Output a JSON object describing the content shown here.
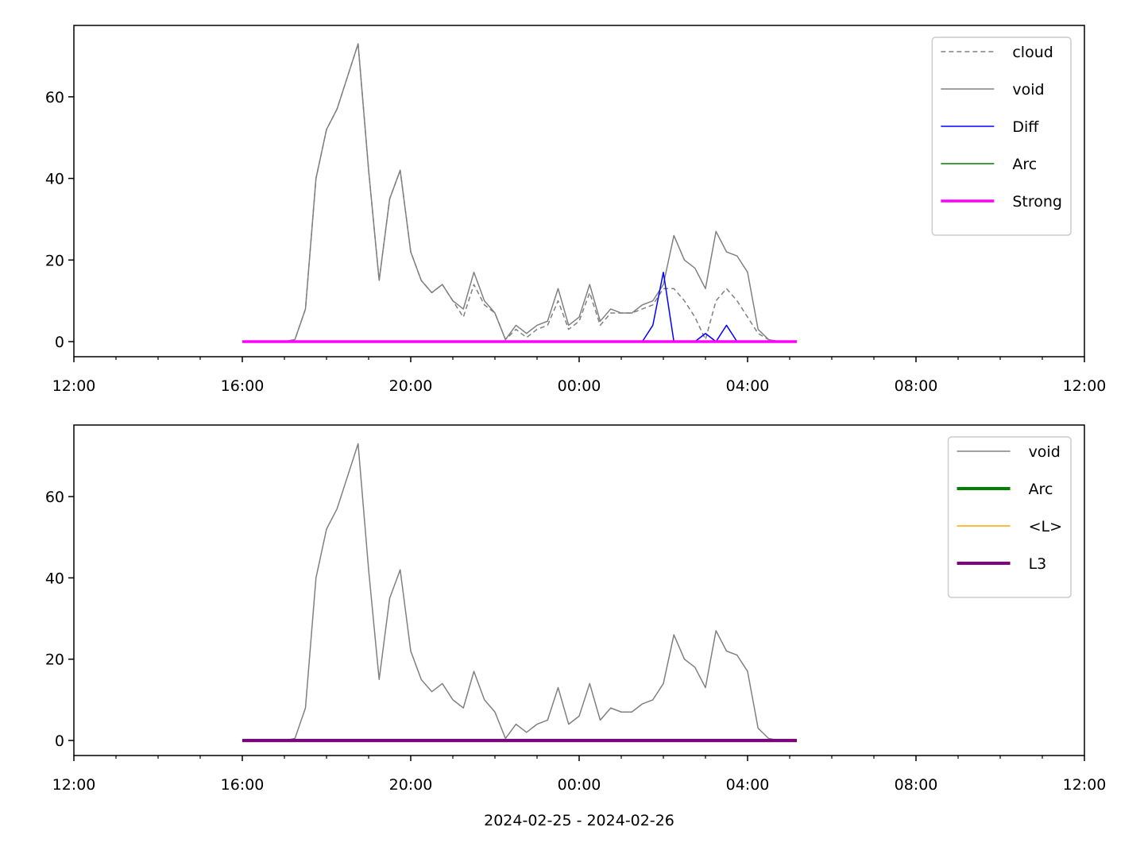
{
  "chart_data": [
    {
      "type": "line",
      "x": [
        16,
        16.25,
        16.5,
        16.75,
        17,
        17.25,
        17.5,
        17.75,
        18,
        18.25,
        18.5,
        18.75,
        19,
        19.25,
        19.5,
        19.75,
        20,
        20.25,
        20.5,
        20.75,
        21,
        21.25,
        21.5,
        21.75,
        22,
        22.25,
        22.5,
        22.75,
        23,
        23.25,
        23.5,
        23.75,
        24,
        24.25,
        24.5,
        24.75,
        25,
        25.25,
        25.5,
        25.75,
        26,
        26.25,
        26.5,
        26.75,
        27,
        27.25,
        27.5,
        27.75,
        28,
        28.25,
        28.5,
        28.75,
        29,
        29.17
      ],
      "series": [
        {
          "name": "cloud",
          "color": "#808080",
          "linestyle": "dashed",
          "linewidth": 1.5,
          "values": [
            0,
            0,
            0,
            0,
            0,
            0.5,
            8,
            40,
            52,
            57,
            65,
            73,
            42,
            15,
            35,
            42,
            22,
            15,
            12,
            14,
            10,
            6,
            14,
            9,
            7,
            0.5,
            3,
            1,
            3,
            4,
            10,
            3,
            5,
            12,
            4,
            7,
            7,
            7,
            8,
            9,
            13,
            13,
            10,
            6,
            0.5,
            10,
            13,
            10,
            6,
            2,
            0.5,
            0,
            0,
            0
          ]
        },
        {
          "name": "void",
          "color": "#808080",
          "linestyle": "solid",
          "linewidth": 1.5,
          "values": [
            0,
            0,
            0,
            0,
            0,
            0.5,
            8,
            40,
            52,
            57,
            65,
            73,
            42,
            15,
            35,
            42,
            22,
            15,
            12,
            14,
            10,
            8,
            17,
            10,
            7,
            0.5,
            4,
            2,
            4,
            5,
            13,
            4,
            6,
            14,
            5,
            8,
            7,
            7,
            9,
            10,
            14,
            26,
            20,
            18,
            13,
            27,
            22,
            21,
            17,
            3,
            0.5,
            0,
            0,
            0
          ]
        },
        {
          "name": "Diff",
          "color": "#0000ff",
          "linestyle": "solid",
          "linewidth": 1.5,
          "values": [
            0,
            0,
            0,
            0,
            0,
            0,
            0,
            0,
            0,
            0,
            0,
            0,
            0,
            0,
            0,
            0,
            0,
            0,
            0,
            0,
            0,
            0,
            0,
            0,
            0,
            0,
            0,
            0,
            0,
            0,
            0,
            0,
            0,
            0,
            0,
            0,
            0,
            0,
            0,
            4,
            17,
            0,
            0,
            0,
            2,
            0,
            4,
            0,
            0,
            0,
            0,
            0,
            0,
            0
          ]
        },
        {
          "name": "Arc",
          "color": "#008000",
          "linestyle": "solid",
          "linewidth": 1.5,
          "values": [
            0,
            0,
            0,
            0,
            0,
            0,
            0,
            0,
            0,
            0,
            0,
            0,
            0,
            0,
            0,
            0,
            0,
            0,
            0,
            0,
            0,
            0,
            0,
            0,
            0,
            0,
            0,
            0,
            0,
            0,
            0,
            0,
            0,
            0,
            0,
            0,
            0,
            0,
            0,
            0,
            0,
            0,
            0,
            0,
            0,
            0,
            0,
            0,
            0,
            0,
            0,
            0,
            0,
            0
          ]
        },
        {
          "name": "Strong",
          "color": "#ff00ff",
          "linestyle": "solid",
          "linewidth": 3.5,
          "values": [
            0,
            0,
            0,
            0,
            0,
            0,
            0,
            0,
            0,
            0,
            0,
            0,
            0,
            0,
            0,
            0,
            0,
            0,
            0,
            0,
            0,
            0,
            0,
            0,
            0,
            0,
            0,
            0,
            0,
            0,
            0,
            0,
            0,
            0,
            0,
            0,
            0,
            0,
            0,
            0,
            0,
            0,
            0,
            0,
            0,
            0,
            0,
            0,
            0,
            0,
            0,
            0,
            0,
            0
          ]
        }
      ],
      "xlim": [
        12,
        36
      ],
      "ylim": [
        -3.7,
        77.5
      ],
      "xticks": [
        {
          "value": 12,
          "label": "12:00"
        },
        {
          "value": 16,
          "label": "16:00"
        },
        {
          "value": 20,
          "label": "20:00"
        },
        {
          "value": 24,
          "label": "00:00"
        },
        {
          "value": 28,
          "label": "04:00"
        },
        {
          "value": 32,
          "label": "08:00"
        },
        {
          "value": 36,
          "label": "12:00"
        }
      ],
      "xminorticks": [
        13,
        14,
        15,
        17,
        18,
        19,
        21,
        22,
        23,
        25,
        26,
        27,
        29,
        30,
        31,
        33,
        34,
        35
      ],
      "yticks": [
        0,
        20,
        40,
        60
      ],
      "legend": "upper right"
    },
    {
      "type": "line",
      "x": [
        16,
        16.25,
        16.5,
        16.75,
        17,
        17.25,
        17.5,
        17.75,
        18,
        18.25,
        18.5,
        18.75,
        19,
        19.25,
        19.5,
        19.75,
        20,
        20.25,
        20.5,
        20.75,
        21,
        21.25,
        21.5,
        21.75,
        22,
        22.25,
        22.5,
        22.75,
        23,
        23.25,
        23.5,
        23.75,
        24,
        24.25,
        24.5,
        24.75,
        25,
        25.25,
        25.5,
        25.75,
        26,
        26.25,
        26.5,
        26.75,
        27,
        27.25,
        27.5,
        27.75,
        28,
        28.25,
        28.5,
        28.75,
        29,
        29.17
      ],
      "series": [
        {
          "name": "void",
          "color": "#808080",
          "linestyle": "solid",
          "linewidth": 1.5,
          "values": [
            0,
            0,
            0,
            0,
            0,
            0.5,
            8,
            40,
            52,
            57,
            65,
            73,
            42,
            15,
            35,
            42,
            22,
            15,
            12,
            14,
            10,
            8,
            17,
            10,
            7,
            0.5,
            4,
            2,
            4,
            5,
            13,
            4,
            6,
            14,
            5,
            8,
            7,
            7,
            9,
            10,
            14,
            26,
            20,
            18,
            13,
            27,
            22,
            21,
            17,
            3,
            0.5,
            0,
            0,
            0
          ]
        },
        {
          "name": "Arc",
          "color": "#008000",
          "linestyle": "solid",
          "linewidth": 4,
          "values": [
            0,
            0,
            0,
            0,
            0,
            0,
            0,
            0,
            0,
            0,
            0,
            0,
            0,
            0,
            0,
            0,
            0,
            0,
            0,
            0,
            0,
            0,
            0,
            0,
            0,
            0,
            0,
            0,
            0,
            0,
            0,
            0,
            0,
            0,
            0,
            0,
            0,
            0,
            0,
            0,
            0,
            0,
            0,
            0,
            0,
            0,
            0,
            0,
            0,
            0,
            0,
            0,
            0,
            0
          ]
        },
        {
          "name": "<L>",
          "color": "#ffa500",
          "linestyle": "solid",
          "linewidth": 1.5,
          "values": [
            0,
            0,
            0,
            0,
            0,
            0,
            0,
            0,
            0,
            0,
            0,
            0,
            0,
            0,
            0,
            0,
            0,
            0,
            0,
            0,
            0,
            0,
            0,
            0,
            0,
            0,
            0,
            0,
            0,
            0,
            0,
            0,
            0,
            0,
            0,
            0,
            0,
            0,
            0,
            0,
            0,
            0,
            0,
            0,
            0,
            0,
            0,
            0,
            0,
            0,
            0,
            0,
            0,
            0
          ]
        },
        {
          "name": "L3",
          "color": "#800080",
          "linestyle": "solid",
          "linewidth": 4,
          "values": [
            0,
            0,
            0,
            0,
            0,
            0,
            0,
            0,
            0,
            0,
            0,
            0,
            0,
            0,
            0,
            0,
            0,
            0,
            0,
            0,
            0,
            0,
            0,
            0,
            0,
            0,
            0,
            0,
            0,
            0,
            0,
            0,
            0,
            0,
            0,
            0,
            0,
            0,
            0,
            0,
            0,
            0,
            0,
            0,
            0,
            0,
            0,
            0,
            0,
            0,
            0,
            0,
            0,
            0
          ]
        }
      ],
      "xlim": [
        12,
        36
      ],
      "ylim": [
        -3.7,
        77.6
      ],
      "xticks": [
        {
          "value": 12,
          "label": "12:00"
        },
        {
          "value": 16,
          "label": "16:00"
        },
        {
          "value": 20,
          "label": "20:00"
        },
        {
          "value": 24,
          "label": "00:00"
        },
        {
          "value": 28,
          "label": "04:00"
        },
        {
          "value": 32,
          "label": "08:00"
        },
        {
          "value": 36,
          "label": "12:00"
        }
      ],
      "xminorticks": [
        13,
        14,
        15,
        17,
        18,
        19,
        21,
        22,
        23,
        25,
        26,
        27,
        29,
        30,
        31,
        33,
        34,
        35
      ],
      "yticks": [
        0,
        20,
        40,
        60
      ],
      "xlabel": "2024-02-25 - 2024-02-26",
      "legend": "upper right"
    }
  ]
}
